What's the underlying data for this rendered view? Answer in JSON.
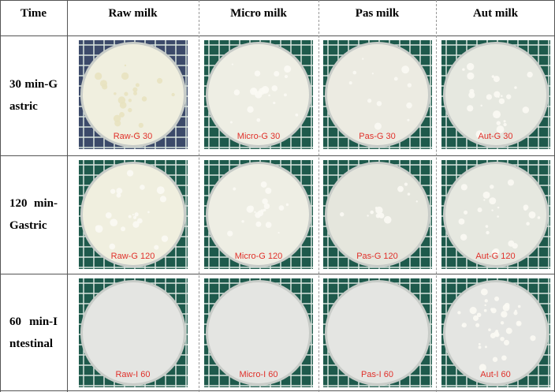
{
  "table": {
    "header": [
      "Time",
      "Raw milk",
      "Micro milk",
      "Pas milk",
      "Aut milk"
    ],
    "rows": [
      {
        "time": "30 min-Gastric",
        "dishes": [
          "Raw-G 30",
          "Micro-G 30",
          "Pas-G 30",
          "Aut-G 30"
        ]
      },
      {
        "time": "120 min-Gastric",
        "dishes": [
          "Raw-G 120",
          "Micro-G 120",
          "Pas-G 120",
          "Aut-G 120"
        ]
      },
      {
        "time": "60 min-Intestinal",
        "dishes": [
          "Raw-I 60",
          "Micro-I 60",
          "Pas-I 60",
          "Aut-I 60"
        ]
      }
    ]
  }
}
